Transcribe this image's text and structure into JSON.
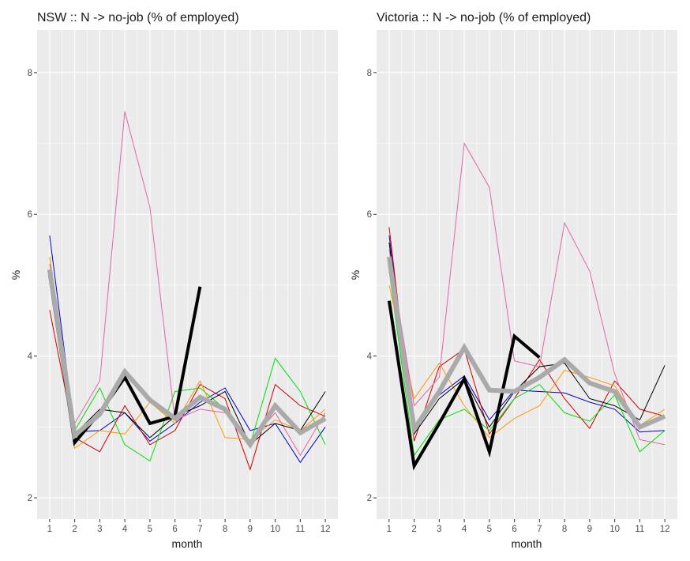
{
  "chart_data": [
    {
      "type": "line",
      "title": "NSW :: N -> no-job (% of employed)",
      "xlabel": "month",
      "ylabel": "%",
      "xlim": [
        0.5,
        12.5
      ],
      "ylim": [
        1.7,
        8.6
      ],
      "x": [
        1,
        2,
        3,
        4,
        5,
        6,
        7,
        8,
        9,
        10,
        11,
        12
      ],
      "x_tick_labels": [
        "1",
        "2",
        "3",
        "4",
        "5",
        "6",
        "7",
        "8",
        "9",
        "10",
        "11",
        "12"
      ],
      "y_ticks": [
        2,
        4,
        6,
        8
      ],
      "y_tick_labels": [
        "2",
        "4",
        "6",
        "8"
      ],
      "grid": true,
      "legend": "none",
      "series": [
        {
          "name": "blue",
          "color": "#0000cc",
          "width": 1,
          "values": [
            5.7,
            2.93,
            2.95,
            3.2,
            2.8,
            3.05,
            3.35,
            3.55,
            2.95,
            3.05,
            2.5,
            3.0
          ]
        },
        {
          "name": "red",
          "color": "#cc0000",
          "width": 1,
          "values": [
            4.65,
            2.85,
            2.65,
            3.3,
            2.75,
            2.95,
            3.6,
            3.4,
            2.4,
            3.6,
            3.3,
            3.15
          ]
        },
        {
          "name": "green",
          "color": "#00dd00",
          "width": 1,
          "values": [
            5.4,
            2.95,
            3.55,
            2.75,
            2.52,
            3.5,
            3.55,
            3.25,
            2.75,
            3.97,
            3.5,
            2.75
          ]
        },
        {
          "name": "orange",
          "color": "#ff9900",
          "width": 1,
          "values": [
            5.4,
            2.7,
            2.95,
            2.9,
            3.35,
            3.05,
            3.65,
            2.85,
            2.82,
            3.1,
            2.95,
            3.25
          ]
        },
        {
          "name": "pink",
          "color": "#e066a8",
          "width": 1,
          "values": [
            5.3,
            3.05,
            3.65,
            7.45,
            6.1,
            3.1,
            3.25,
            3.2,
            2.8,
            3.2,
            2.6,
            3.2
          ]
        },
        {
          "name": "black",
          "color": "#000000",
          "width": 1,
          "values": [
            5.1,
            2.9,
            3.25,
            3.2,
            2.85,
            3.15,
            3.3,
            3.5,
            2.75,
            3.05,
            2.95,
            3.5
          ]
        },
        {
          "name": "current-year",
          "color": "#000000",
          "width": 4,
          "values": [
            5.15,
            2.78,
            3.2,
            3.7,
            3.05,
            3.15,
            4.98,
            null,
            null,
            null,
            null,
            null
          ]
        },
        {
          "name": "average",
          "color": "#aaaaaa",
          "width": 6,
          "values": [
            5.22,
            2.88,
            3.18,
            3.78,
            3.38,
            3.12,
            3.42,
            3.25,
            2.75,
            3.3,
            2.92,
            3.12
          ]
        }
      ]
    },
    {
      "type": "line",
      "title": "Victoria :: N -> no-job (% of employed)",
      "xlabel": "month",
      "ylabel": "%",
      "xlim": [
        0.5,
        12.5
      ],
      "ylim": [
        1.7,
        8.6
      ],
      "x": [
        1,
        2,
        3,
        4,
        5,
        6,
        7,
        8,
        9,
        10,
        11,
        12
      ],
      "x_tick_labels": [
        "1",
        "2",
        "3",
        "4",
        "5",
        "6",
        "7",
        "8",
        "9",
        "10",
        "11",
        "12"
      ],
      "y_ticks": [
        2,
        4,
        6,
        8
      ],
      "y_tick_labels": [
        "2",
        "4",
        "6",
        "8"
      ],
      "grid": true,
      "legend": "none",
      "series": [
        {
          "name": "blue",
          "color": "#0000cc",
          "width": 1,
          "values": [
            5.7,
            2.95,
            3.45,
            3.72,
            3.1,
            3.52,
            3.5,
            3.48,
            3.35,
            3.25,
            2.93,
            2.95
          ]
        },
        {
          "name": "red",
          "color": "#cc0000",
          "width": 1,
          "values": [
            5.82,
            2.8,
            3.85,
            4.1,
            2.9,
            3.4,
            3.95,
            3.4,
            2.98,
            3.65,
            3.25,
            3.15
          ]
        },
        {
          "name": "green",
          "color": "#00dd00",
          "width": 1,
          "values": [
            5.2,
            2.6,
            3.1,
            3.25,
            2.95,
            3.4,
            3.6,
            3.2,
            3.08,
            3.45,
            2.65,
            2.95
          ]
        },
        {
          "name": "orange",
          "color": "#ff9900",
          "width": 1,
          "values": [
            5.0,
            3.4,
            3.9,
            3.3,
            2.85,
            3.12,
            3.3,
            3.8,
            3.7,
            3.58,
            3.02,
            3.25
          ]
        },
        {
          "name": "pink",
          "color": "#e066a8",
          "width": 1,
          "values": [
            5.5,
            3.3,
            3.7,
            7.0,
            6.38,
            3.93,
            3.85,
            5.88,
            5.2,
            3.75,
            2.82,
            2.75
          ]
        },
        {
          "name": "black",
          "color": "#000000",
          "width": 1,
          "values": [
            5.6,
            2.9,
            3.4,
            3.68,
            3.0,
            3.5,
            3.85,
            3.9,
            3.4,
            3.3,
            3.1,
            3.87
          ]
        },
        {
          "name": "current-year",
          "color": "#000000",
          "width": 4,
          "values": [
            4.78,
            2.45,
            3.05,
            3.68,
            2.65,
            4.28,
            3.98,
            null,
            null,
            null,
            null,
            null
          ]
        },
        {
          "name": "average",
          "color": "#aaaaaa",
          "width": 6,
          "values": [
            5.4,
            2.97,
            3.5,
            4.12,
            3.52,
            3.5,
            3.7,
            3.95,
            3.62,
            3.5,
            3.0,
            3.15
          ]
        }
      ]
    }
  ]
}
